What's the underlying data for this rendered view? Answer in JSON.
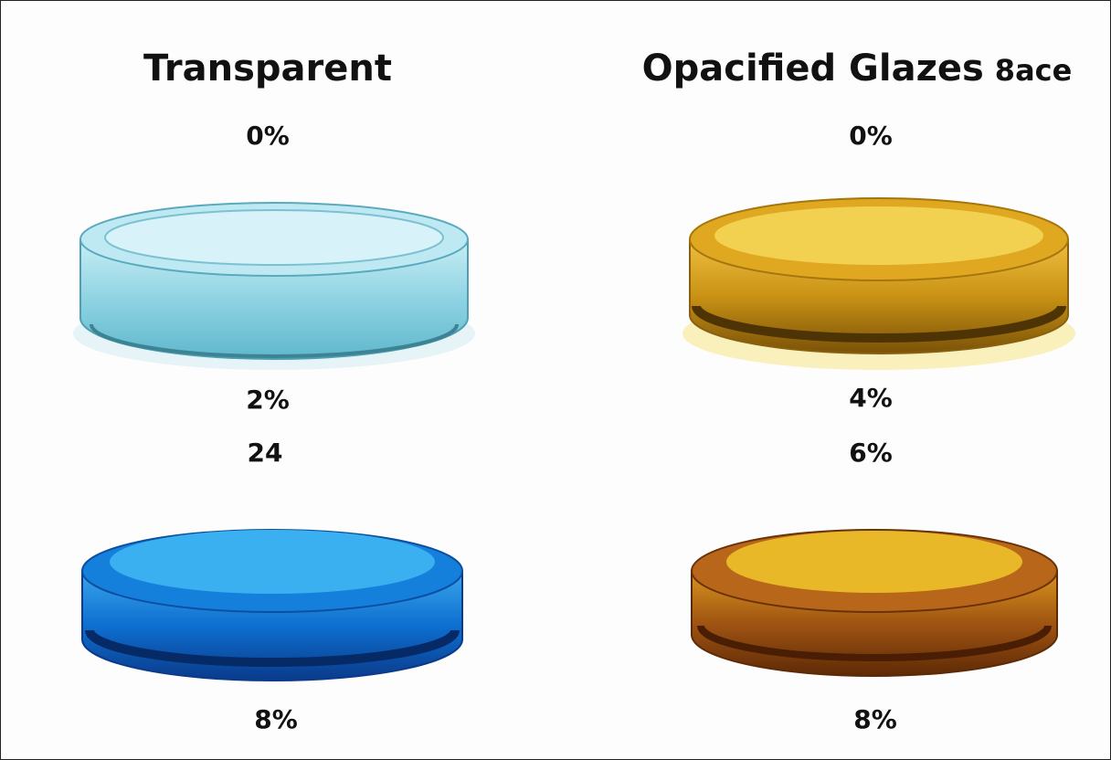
{
  "left": {
    "title": "Transparent",
    "labels": [
      "0%",
      "2%",
      "24",
      "8%"
    ]
  },
  "right": {
    "title": "Opacified Glazes",
    "title_suffix": "8ace",
    "labels": [
      "0%",
      "4%",
      "6%",
      "8%"
    ]
  }
}
